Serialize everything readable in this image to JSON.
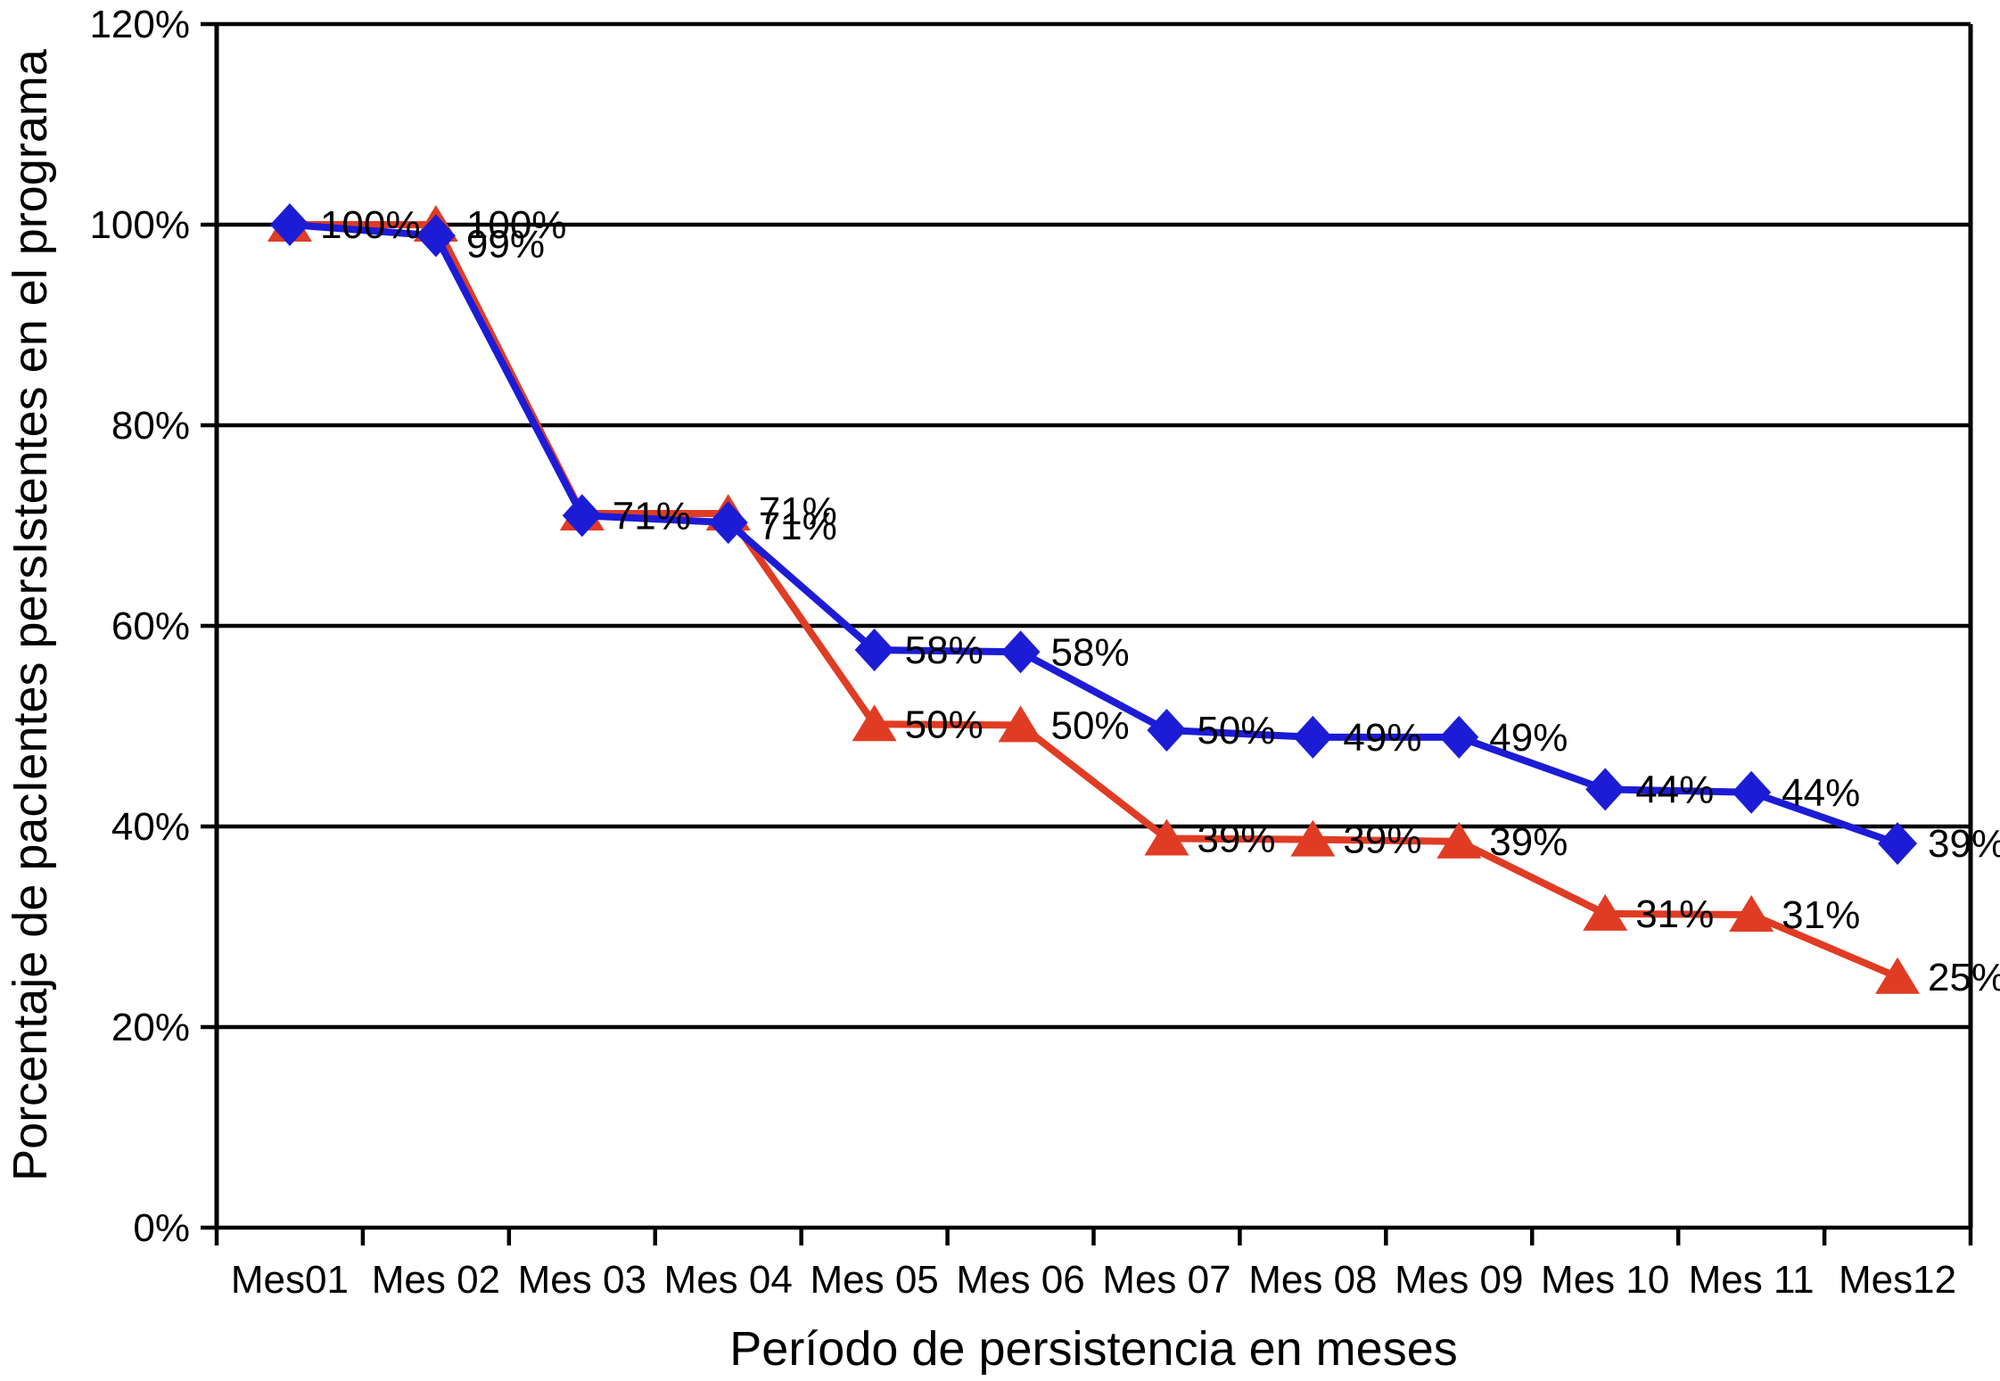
{
  "chart_data": {
    "type": "line",
    "title": "",
    "xlabel": "Período de persistencia en meses",
    "ylabel": "Porcentaje de pacIentes persIstentes en el programa",
    "categories": [
      "Mes01",
      "Mes 02",
      "Mes 03",
      "Mes 04",
      "Mes 05",
      "Mes 06",
      "Mes 07",
      "Mes 08",
      "Mes 09",
      "Mes 10",
      "Mes 11",
      "Mes12"
    ],
    "ylim": [
      0,
      120
    ],
    "ytick_step": 20,
    "ytick_labels": [
      "0%",
      "20%",
      "40%",
      "60%",
      "80%",
      "100%",
      "120%"
    ],
    "grid": "horizontal-gridlines-every-20pct-with-full-plot-border",
    "legend": "none",
    "colors": {
      "series_blue": "#1C1CD6",
      "series_red": "#E03C24",
      "axis_and_grid": "#000000",
      "background": "#FFFFFF",
      "label_text": "#000000"
    },
    "series": [
      {
        "name": "serie-roja-triangulos",
        "color": "#E03C24",
        "marker": "triangle",
        "values": [
          100,
          100,
          71,
          71,
          50,
          50,
          39,
          39,
          39,
          31,
          31,
          25
        ],
        "labels": [
          "",
          "100%",
          "",
          "71%",
          "50%",
          "50%",
          "39%",
          "39%",
          "39%",
          "31%",
          "31%",
          "25%"
        ],
        "plotted": [
          100,
          100,
          71.2,
          71.2,
          50.2,
          50.1,
          38.8,
          38.7,
          38.5,
          31.3,
          31.2,
          25.0
        ],
        "label_dy": [
          0,
          0,
          0,
          -3,
          0,
          0,
          0,
          0,
          0,
          0,
          0,
          0
        ]
      },
      {
        "name": "serie-azul-diamantes",
        "color": "#1C1CD6",
        "marker": "diamond",
        "values": [
          100,
          99,
          71,
          71,
          58,
          58,
          50,
          49,
          49,
          44,
          44,
          39
        ],
        "labels": [
          "100%",
          "99%",
          "71%",
          "71%",
          "58%",
          "58%",
          "50%",
          "49%",
          "49%",
          "44%",
          "44%",
          "39%"
        ],
        "plotted": [
          100,
          98.9,
          71.0,
          70.3,
          57.6,
          57.4,
          49.6,
          48.9,
          48.9,
          43.7,
          43.4,
          38.3
        ],
        "label_dy": [
          0,
          9,
          0,
          4,
          0,
          0,
          0,
          0,
          0,
          0,
          0,
          0
        ]
      }
    ]
  }
}
